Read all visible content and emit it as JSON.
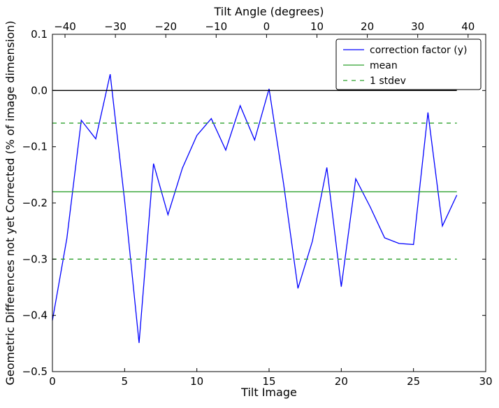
{
  "chart_data": {
    "type": "line",
    "xlabel": "Tilt Image",
    "ylabel": "Geometric Differences not yet Corrected (% of image dimension)",
    "top_xlabel": "Tilt Angle (degrees)",
    "xlim": [
      0,
      30
    ],
    "ylim": [
      -0.5,
      0.1
    ],
    "top_xlim": [
      -42.5,
      43.5
    ],
    "x_ticks": [
      0,
      5,
      10,
      15,
      20,
      25,
      30
    ],
    "x_tick_labels": [
      "0",
      "5",
      "10",
      "15",
      "20",
      "25",
      "30"
    ],
    "y_ticks": [
      -0.5,
      -0.4,
      -0.3,
      -0.2,
      -0.1,
      0.0,
      0.1
    ],
    "y_tick_labels": [
      "−0.5",
      "−0.4",
      "−0.3",
      "−0.2",
      "−0.1",
      "0.0",
      "0.1"
    ],
    "top_ticks": [
      -40,
      -30,
      -20,
      -10,
      0,
      10,
      20,
      30,
      40
    ],
    "top_tick_labels": [
      "−40",
      "−30",
      "−20",
      "−10",
      "0",
      "10",
      "20",
      "30",
      "40"
    ],
    "grid": false,
    "legend_position": "top-right",
    "series": [
      {
        "name": "correction factor (y)",
        "color": "#0000ff",
        "style": "solid",
        "x": [
          0,
          1,
          2,
          3,
          4,
          5,
          6,
          7,
          8,
          9,
          10,
          11,
          12,
          13,
          14,
          15,
          16,
          17,
          18,
          19,
          20,
          21,
          22,
          23,
          24,
          25,
          26,
          27,
          28
        ],
        "y": [
          -0.409,
          -0.263,
          -0.053,
          -0.086,
          0.029,
          -0.196,
          -0.449,
          -0.13,
          -0.221,
          -0.138,
          -0.08,
          -0.05,
          -0.106,
          -0.027,
          -0.088,
          0.003,
          -0.165,
          -0.352,
          -0.268,
          -0.137,
          -0.349,
          -0.157,
          -0.207,
          -0.262,
          -0.272,
          -0.274,
          -0.039,
          -0.241,
          -0.186
        ]
      },
      {
        "name": "mean",
        "color": "#2ca02c",
        "style": "solid",
        "x": [
          0,
          28
        ],
        "y": [
          -0.18,
          -0.18
        ]
      },
      {
        "name": "1 stdev",
        "color": "#2ca02c",
        "style": "dashed",
        "x": [
          0,
          28
        ],
        "y": [
          -0.058,
          -0.058
        ]
      },
      {
        "name": "",
        "color": "#2ca02c",
        "style": "dashed",
        "x": [
          0,
          28
        ],
        "y": [
          -0.3,
          -0.3
        ]
      },
      {
        "name": "",
        "color": "#000000",
        "style": "solid",
        "x": [
          0,
          28
        ],
        "y": [
          0.0,
          0.0
        ]
      }
    ],
    "legend": [
      "correction factor (y)",
      "mean",
      "1 stdev"
    ]
  }
}
